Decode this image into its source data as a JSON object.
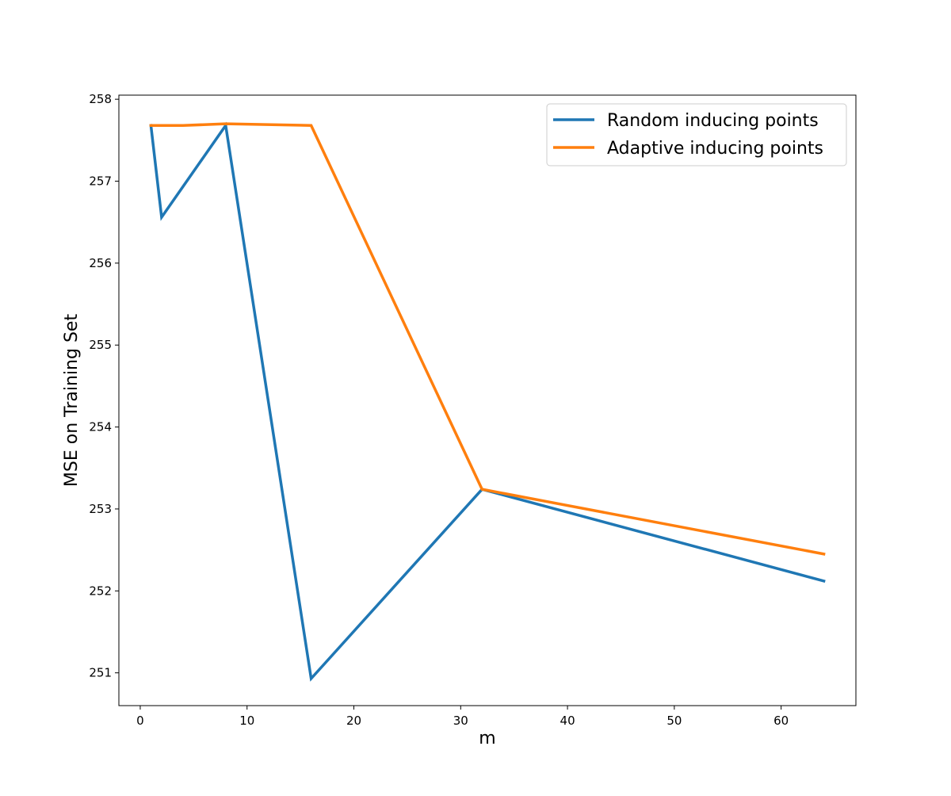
{
  "chart_data": {
    "type": "line",
    "title": "",
    "xlabel": "m",
    "ylabel": "MSE on Training Set",
    "xlim": [
      -2,
      67
    ],
    "ylim": [
      250.6,
      258.05
    ],
    "xticks": [
      0,
      10,
      20,
      30,
      40,
      50,
      60
    ],
    "yticks": [
      251,
      252,
      253,
      254,
      255,
      256,
      257,
      258
    ],
    "grid": false,
    "legend_position": "top-right",
    "series": [
      {
        "name": "Random inducing points",
        "color": "#1f77b4",
        "x": [
          1,
          2,
          8,
          16,
          32,
          64
        ],
        "y": [
          257.68,
          256.56,
          257.68,
          250.93,
          253.24,
          252.12
        ]
      },
      {
        "name": "Adaptive inducing points",
        "color": "#ff7f0e",
        "x": [
          1,
          4,
          8,
          16,
          32,
          64
        ],
        "y": [
          257.68,
          257.68,
          257.7,
          257.68,
          253.24,
          252.45
        ]
      }
    ]
  }
}
